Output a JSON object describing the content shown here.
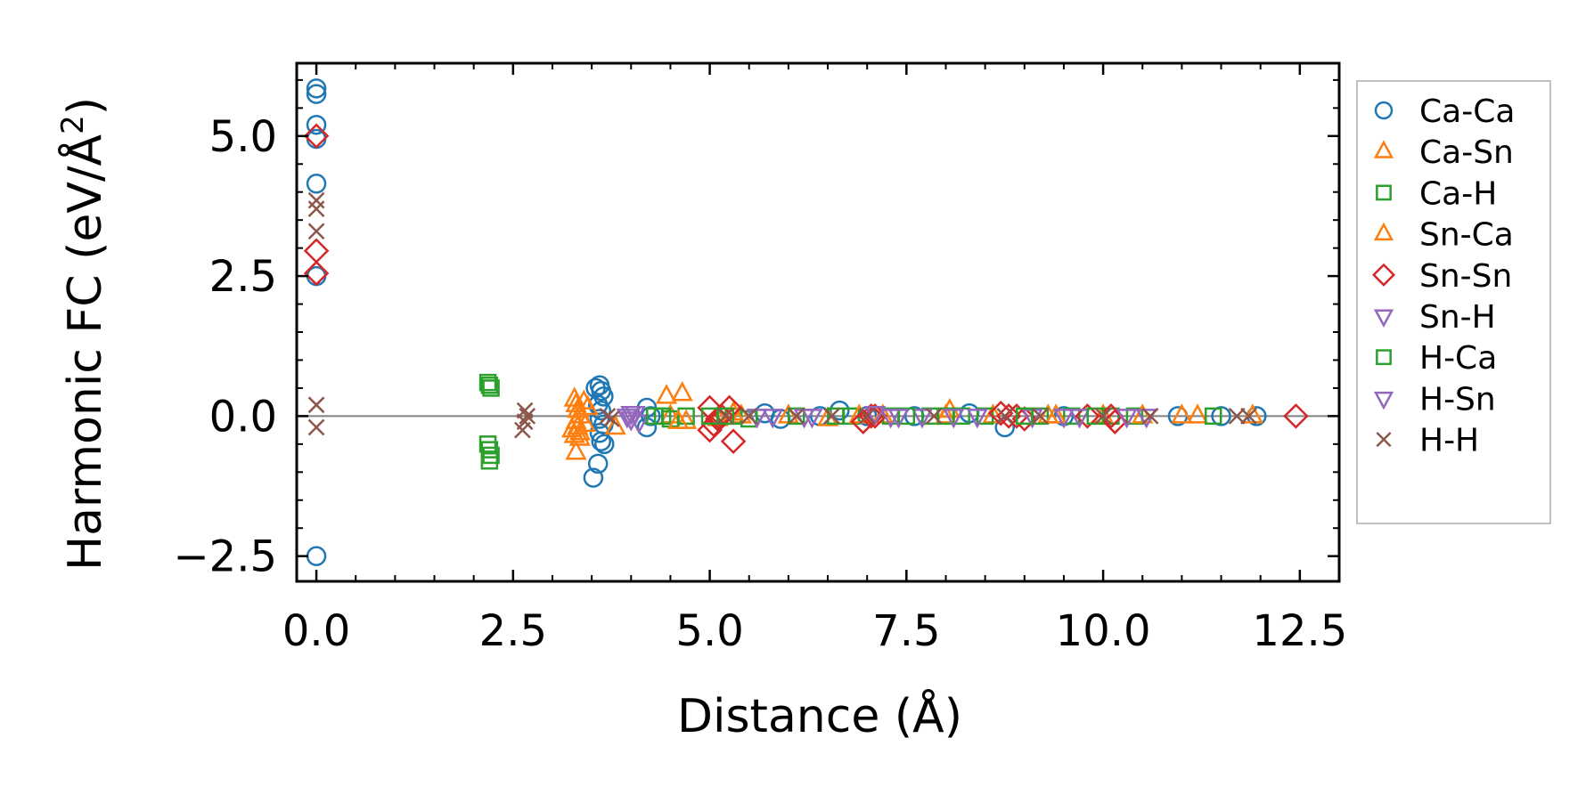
{
  "chart_data": {
    "type": "scatter",
    "xlabel": "Distance (Å)",
    "ylabel_main": "Harmonic FC (eV/Å",
    "ylabel_sup": "2",
    "ylabel_end": ")",
    "xlim": [
      -0.25,
      13.0
    ],
    "ylim": [
      -2.95,
      6.3
    ],
    "xticks": [
      0.0,
      2.5,
      5.0,
      7.5,
      10.0,
      12.5
    ],
    "xtick_labels": [
      "0.0",
      "2.5",
      "5.0",
      "7.5",
      "10.0",
      "12.5"
    ],
    "yticks": [
      -2.5,
      0.0,
      2.5,
      5.0
    ],
    "ytick_labels": [
      "−2.5",
      "0.0",
      "2.5",
      "5.0"
    ],
    "zero_line": 0.0,
    "legend_position": "right",
    "series": [
      {
        "name": "Ca-Ca",
        "marker": "circle",
        "color": "#1f77b4",
        "points": [
          [
            0,
            5.85
          ],
          [
            0,
            5.75
          ],
          [
            0,
            5.2
          ],
          [
            0,
            4.95
          ],
          [
            0,
            4.15
          ],
          [
            0,
            2.5
          ],
          [
            0,
            -2.5
          ],
          [
            3.52,
            -1.1
          ],
          [
            3.58,
            -0.85
          ],
          [
            3.6,
            0.55
          ],
          [
            3.62,
            0.45
          ],
          [
            3.65,
            0.35
          ],
          [
            3.58,
            0.2
          ],
          [
            3.62,
            0.1
          ],
          [
            3.6,
            -0.05
          ],
          [
            3.65,
            -0.15
          ],
          [
            3.6,
            -0.3
          ],
          [
            3.62,
            -0.45
          ],
          [
            3.66,
            -0.5
          ],
          [
            3.55,
            0.5
          ],
          [
            4.2,
            0.15
          ],
          [
            4.2,
            -0.2
          ],
          [
            4.25,
            0.0
          ],
          [
            5.7,
            0.05
          ],
          [
            5.9,
            -0.05
          ],
          [
            6.4,
            0.0
          ],
          [
            6.65,
            0.1
          ],
          [
            7.0,
            0.0
          ],
          [
            7.6,
            0.0
          ],
          [
            8.3,
            0.05
          ],
          [
            8.75,
            -0.2
          ],
          [
            9.5,
            0.0
          ],
          [
            10.95,
            0.0
          ],
          [
            11.5,
            0.0
          ],
          [
            11.95,
            0.0
          ]
        ]
      },
      {
        "name": "Ca-Sn",
        "marker": "triangle-up",
        "color": "#ff7f0e",
        "points": [
          [
            3.28,
            0.3
          ],
          [
            3.3,
            0.2
          ],
          [
            3.32,
            0.1
          ],
          [
            3.35,
            0.0
          ],
          [
            3.3,
            -0.1
          ],
          [
            3.32,
            -0.2
          ],
          [
            3.35,
            -0.3
          ],
          [
            3.28,
            -0.35
          ],
          [
            3.3,
            -0.65
          ],
          [
            3.4,
            0.25
          ],
          [
            3.42,
            -0.15
          ],
          [
            4.45,
            0.35
          ],
          [
            4.65,
            0.4
          ],
          [
            4.5,
            0.0
          ],
          [
            4.7,
            -0.1
          ],
          [
            5.1,
            -0.05
          ],
          [
            5.4,
            0.0
          ],
          [
            6.0,
            0.0
          ],
          [
            6.5,
            -0.05
          ],
          [
            7.2,
            0.0
          ],
          [
            8.05,
            0.1
          ],
          [
            8.6,
            0.0
          ],
          [
            9.3,
            0.0
          ],
          [
            10.0,
            0.0
          ],
          [
            11.0,
            0.0
          ],
          [
            11.2,
            0.0
          ],
          [
            11.9,
            0.0
          ]
        ]
      },
      {
        "name": "Ca-H",
        "marker": "square",
        "color": "#2ca02c",
        "points": [
          [
            2.18,
            0.6
          ],
          [
            2.2,
            0.55
          ],
          [
            2.22,
            0.5
          ],
          [
            2.18,
            -0.5
          ],
          [
            2.2,
            -0.6
          ],
          [
            2.22,
            -0.7
          ],
          [
            2.2,
            -0.8
          ],
          [
            4.4,
            0.0
          ],
          [
            4.5,
            -0.05
          ],
          [
            4.7,
            0.0
          ],
          [
            5.3,
            0.0
          ],
          [
            5.5,
            -0.05
          ],
          [
            6.1,
            0.0
          ],
          [
            6.8,
            0.0
          ],
          [
            7.3,
            0.0
          ],
          [
            7.8,
            0.0
          ],
          [
            8.2,
            0.0
          ],
          [
            8.5,
            0.0
          ],
          [
            9.2,
            0.0
          ],
          [
            9.6,
            0.0
          ],
          [
            10.1,
            0.0
          ],
          [
            10.4,
            0.0
          ],
          [
            11.4,
            0.0
          ]
        ]
      },
      {
        "name": "Sn-Ca",
        "marker": "triangle-up",
        "color": "#ff7f0e",
        "points": [
          [
            3.25,
            -0.25
          ],
          [
            3.35,
            -0.4
          ],
          [
            3.45,
            0.15
          ],
          [
            3.8,
            -0.2
          ],
          [
            4.6,
            -0.1
          ],
          [
            5.3,
            0.05
          ],
          [
            6.9,
            0.0
          ],
          [
            8.0,
            0.0
          ],
          [
            9.4,
            0.0
          ],
          [
            10.5,
            0.0
          ]
        ]
      },
      {
        "name": "Sn-Sn",
        "marker": "diamond",
        "color": "#d62728",
        "points": [
          [
            0,
            5.0
          ],
          [
            0,
            2.95
          ],
          [
            0,
            2.55
          ],
          [
            5.0,
            0.15
          ],
          [
            5.05,
            -0.15
          ],
          [
            5.0,
            -0.25
          ],
          [
            5.15,
            0.0
          ],
          [
            5.25,
            0.15
          ],
          [
            5.3,
            -0.45
          ],
          [
            5.1,
            -0.05
          ],
          [
            6.95,
            -0.1
          ],
          [
            7.05,
            0.0
          ],
          [
            7.1,
            0.0
          ],
          [
            8.7,
            0.05
          ],
          [
            8.8,
            0.0
          ],
          [
            8.9,
            0.0
          ],
          [
            9.0,
            -0.05
          ],
          [
            9.8,
            0.0
          ],
          [
            10.1,
            0.0
          ],
          [
            10.15,
            -0.1
          ],
          [
            12.45,
            0.0
          ]
        ]
      },
      {
        "name": "Sn-H",
        "marker": "triangle-down",
        "color": "#9467bd",
        "points": [
          [
            3.95,
            0.0
          ],
          [
            4.0,
            -0.05
          ],
          [
            4.05,
            0.05
          ],
          [
            4.1,
            -0.1
          ],
          [
            5.6,
            0.0
          ],
          [
            6.3,
            0.0
          ],
          [
            7.1,
            0.05
          ],
          [
            7.3,
            0.0
          ],
          [
            7.7,
            0.0
          ],
          [
            8.4,
            0.0
          ],
          [
            9.1,
            0.0
          ],
          [
            9.7,
            0.0
          ],
          [
            10.55,
            0.0
          ]
        ]
      },
      {
        "name": "H-Ca",
        "marker": "square",
        "color": "#2ca02c",
        "points": [
          [
            4.3,
            0.0
          ],
          [
            5.0,
            0.0
          ],
          [
            5.2,
            0.0
          ],
          [
            6.6,
            0.0
          ],
          [
            7.5,
            0.0
          ],
          [
            8.0,
            0.0
          ],
          [
            9.0,
            0.0
          ],
          [
            9.9,
            0.0
          ]
        ]
      },
      {
        "name": "H-Sn",
        "marker": "triangle-down",
        "color": "#9467bd",
        "points": [
          [
            4.0,
            0.05
          ],
          [
            5.8,
            0.0
          ],
          [
            6.2,
            0.0
          ],
          [
            7.4,
            0.0
          ],
          [
            8.1,
            0.0
          ],
          [
            9.5,
            0.0
          ],
          [
            10.3,
            0.0
          ]
        ]
      },
      {
        "name": "H-H",
        "marker": "x",
        "color": "#8c564b",
        "points": [
          [
            0,
            3.85
          ],
          [
            0,
            3.7
          ],
          [
            0,
            3.3
          ],
          [
            0,
            0.2
          ],
          [
            0,
            -0.2
          ],
          [
            2.65,
            0.1
          ],
          [
            2.68,
            0.0
          ],
          [
            2.65,
            -0.1
          ],
          [
            2.62,
            -0.25
          ],
          [
            3.7,
            0.0
          ],
          [
            3.75,
            -0.05
          ],
          [
            5.2,
            0.0
          ],
          [
            5.5,
            0.0
          ],
          [
            6.1,
            0.0
          ],
          [
            6.55,
            0.0
          ],
          [
            7.0,
            0.0
          ],
          [
            7.85,
            0.0
          ],
          [
            8.75,
            0.0
          ],
          [
            9.2,
            0.0
          ],
          [
            10.0,
            0.0
          ],
          [
            10.6,
            0.0
          ],
          [
            11.7,
            0.0
          ],
          [
            11.85,
            0.0
          ]
        ]
      }
    ]
  }
}
